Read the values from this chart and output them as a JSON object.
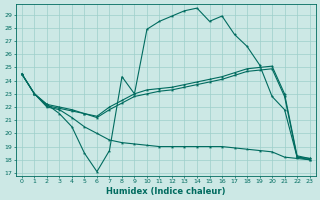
{
  "xlabel": "Humidex (Indice chaleur)",
  "bg_color": "#cce8e5",
  "grid_color": "#9ecfca",
  "line_color": "#006b5f",
  "xlim": [
    -0.5,
    23.5
  ],
  "ylim": [
    16.8,
    29.8
  ],
  "yticks": [
    17,
    18,
    19,
    20,
    21,
    22,
    23,
    24,
    25,
    26,
    27,
    28,
    29
  ],
  "xticks": [
    0,
    1,
    2,
    3,
    4,
    5,
    6,
    7,
    8,
    9,
    10,
    11,
    12,
    13,
    14,
    15,
    16,
    17,
    18,
    19,
    20,
    21,
    22,
    23
  ],
  "line1_y": [
    24.5,
    23.0,
    22.2,
    21.5,
    20.5,
    18.5,
    17.1,
    18.7,
    24.3,
    23.0,
    27.9,
    28.5,
    28.9,
    29.3,
    29.5,
    28.5,
    28.9,
    27.5,
    26.6,
    25.2,
    22.8,
    21.8,
    18.2,
    18.1
  ],
  "line2_y": [
    24.5,
    23.0,
    22.2,
    22.0,
    21.8,
    21.5,
    21.3,
    22.0,
    22.5,
    23.0,
    23.3,
    23.4,
    23.5,
    23.7,
    23.9,
    24.1,
    24.3,
    24.6,
    24.9,
    25.0,
    25.1,
    23.0,
    18.3,
    18.1
  ],
  "line3_y": [
    24.5,
    23.0,
    22.1,
    21.9,
    21.7,
    21.5,
    21.2,
    21.8,
    22.3,
    22.8,
    23.0,
    23.2,
    23.3,
    23.5,
    23.7,
    23.9,
    24.1,
    24.4,
    24.7,
    24.8,
    24.9,
    22.8,
    18.2,
    18.0
  ],
  "line4_y": [
    24.5,
    23.0,
    22.0,
    21.8,
    21.2,
    20.5,
    20.0,
    19.5,
    19.3,
    19.2,
    19.1,
    19.0,
    19.0,
    19.0,
    19.0,
    19.0,
    19.0,
    18.9,
    18.8,
    18.7,
    18.6,
    18.2,
    18.1,
    18.0
  ]
}
